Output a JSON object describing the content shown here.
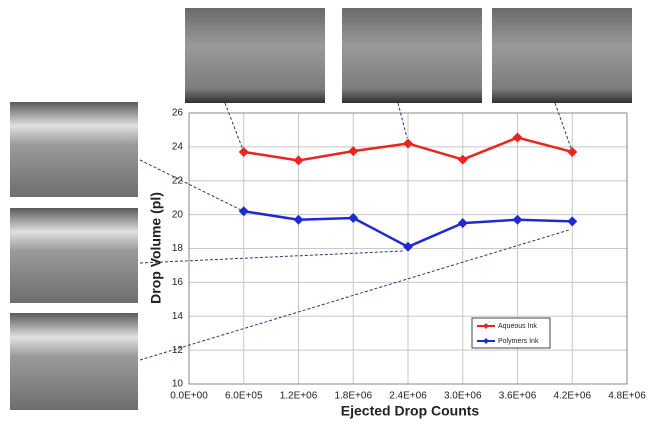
{
  "chart_data": {
    "type": "line",
    "x_label": "Ejected Drop Counts",
    "y_label": "Drop Volume (pl)",
    "x": [
      600000,
      1200000,
      1800000,
      2400000,
      3000000,
      3600000,
      4200000
    ],
    "series": [
      {
        "name": "Aqueous Ink",
        "color": "#e8251f",
        "values": [
          23.7,
          23.2,
          23.75,
          24.2,
          23.25,
          24.55,
          23.7
        ]
      },
      {
        "name": "Polymers Ink",
        "color": "#1f2bd0",
        "values": [
          20.2,
          19.7,
          19.8,
          18.1,
          19.5,
          19.7,
          19.6
        ]
      }
    ],
    "xlim": [
      0,
      4800000
    ],
    "xticks": [
      {
        "value": 0,
        "label": "0.0E+00"
      },
      {
        "value": 600000,
        "label": "6.0E+05"
      },
      {
        "value": 1200000,
        "label": "1.2E+06"
      },
      {
        "value": 1800000,
        "label": "1.8E+06"
      },
      {
        "value": 2400000,
        "label": "2.4E+06"
      },
      {
        "value": 3000000,
        "label": "3.0E+06"
      },
      {
        "value": 3600000,
        "label": "3.6E+06"
      },
      {
        "value": 4200000,
        "label": "4.2E+06"
      },
      {
        "value": 4800000,
        "label": "4.8E+06"
      }
    ],
    "ylim": [
      10,
      26
    ],
    "yticks": [
      10,
      12,
      14,
      16,
      18,
      20,
      22,
      24,
      26
    ],
    "grid": true
  }
}
